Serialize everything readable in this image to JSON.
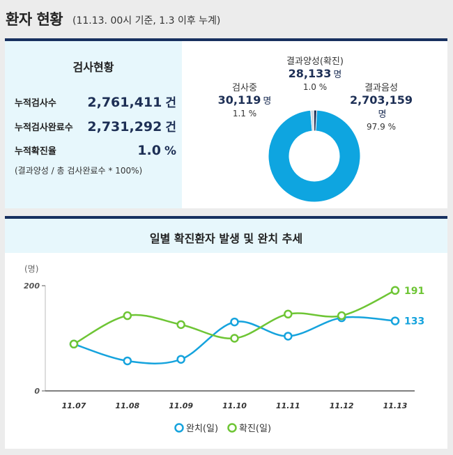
{
  "header": {
    "title": "환자 현황",
    "subtitle": "(11.13. 00시 기준, 1.3 이후 누계)"
  },
  "testing": {
    "title": "검사현황",
    "rows": [
      {
        "label": "누적검사수",
        "value": "2,761,411",
        "unit": "건"
      },
      {
        "label": "누적검사완료수",
        "value": "2,731,292",
        "unit": "건"
      },
      {
        "label": "누적확진율",
        "value": "1.0",
        "unit": "%"
      }
    ],
    "footnote": "(결과양성 / 총 검사완료수 * 100%)"
  },
  "donut": {
    "in_progress": {
      "label": "검사중",
      "value": "30,119",
      "unit": "명",
      "pct": "1.1 %",
      "color": "#cfd6dd"
    },
    "positive": {
      "label": "결과양성(확진)",
      "value": "28,133",
      "unit": "명",
      "pct": "1.0 %",
      "color": "#1d2f55"
    },
    "negative": {
      "label": "결과음성",
      "value": "2,703,159",
      "unit": "명",
      "pct": "97.9 %",
      "color": "#0ea5e0"
    }
  },
  "chart_data": {
    "type": "line",
    "title": "일별 확진환자 발생 및 완치 추세",
    "ylabel": "(명)",
    "ylim": [
      0,
      200
    ],
    "yticks": [
      0,
      200
    ],
    "categories": [
      "11.07",
      "11.08",
      "11.09",
      "11.10",
      "11.11",
      "11.12",
      "11.13"
    ],
    "series": [
      {
        "name": "완치(일)",
        "color": "#15a3dd",
        "values": [
          89,
          57,
          60,
          131,
          104,
          139,
          133
        ]
      },
      {
        "name": "확진(일)",
        "color": "#6ec535",
        "values": [
          89,
          143,
          126,
          100,
          146,
          143,
          191
        ]
      }
    ],
    "end_labels": [
      "133",
      "191"
    ]
  }
}
